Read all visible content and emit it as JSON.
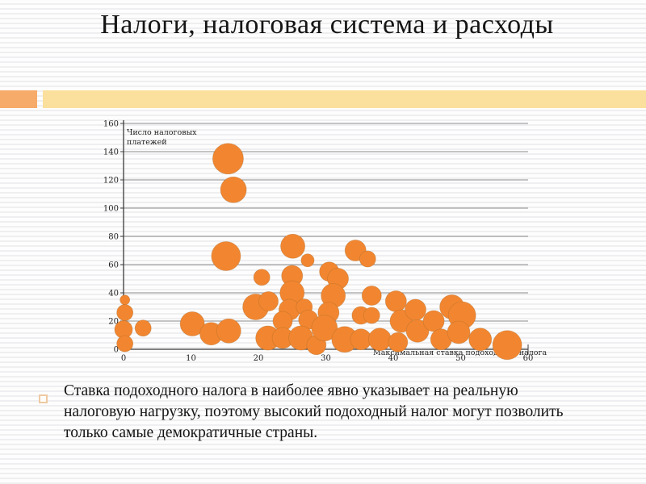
{
  "slide": {
    "title": "Налоги, налоговая система и расходы",
    "bullet_text": "Ставка подоходного налога в наиболее явно указывает на реальную налоговую нагрузку, поэтому высокий подоходный налог могут позволить только самые демократичные страны.",
    "accent_colors": {
      "orange_block": "#f6ab6b",
      "yellow_bar": "#fbdf9d",
      "bubble_fill": "#f28630",
      "bubble_stroke": "#b06a28",
      "gridline": "#8a8a8a",
      "axis": "#3a3a3a",
      "tick_text": "#222222"
    }
  },
  "chart_data": {
    "type": "scatter",
    "title": "",
    "x_axis": {
      "label": "Максимальная ставка подоходного налога",
      "ticks": [
        0,
        10,
        20,
        30,
        40,
        50,
        60
      ],
      "range": [
        0,
        60
      ],
      "grid": false
    },
    "y_axis": {
      "label_line1": "Число налоговых",
      "label_line2": "платежей",
      "ticks": [
        0,
        20,
        40,
        60,
        80,
        100,
        120,
        140,
        160
      ],
      "range": [
        0,
        160
      ],
      "grid": true
    },
    "points_note": "each point is [x=max income tax rate, y=number of tax payments, bubble radius px]",
    "points": [
      [
        15.5,
        135,
        19
      ],
      [
        16.3,
        113,
        16
      ],
      [
        15.2,
        66,
        18
      ],
      [
        20.5,
        51,
        10
      ],
      [
        25.1,
        73,
        15
      ],
      [
        27.3,
        63,
        8
      ],
      [
        34.4,
        70,
        13
      ],
      [
        36.2,
        64,
        10
      ],
      [
        0.2,
        35,
        6
      ],
      [
        0.2,
        26,
        10
      ],
      [
        0,
        14,
        11
      ],
      [
        2.9,
        15,
        10
      ],
      [
        0.2,
        4,
        10
      ],
      [
        10.2,
        18,
        15
      ],
      [
        13,
        11,
        14
      ],
      [
        15.6,
        13,
        15
      ],
      [
        19.6,
        30,
        16
      ],
      [
        21.4,
        8,
        15
      ],
      [
        21.5,
        34,
        12
      ],
      [
        25,
        52,
        13
      ],
      [
        25,
        40,
        15
      ],
      [
        24.6,
        28,
        13
      ],
      [
        23.6,
        20,
        12
      ],
      [
        23.6,
        8,
        13
      ],
      [
        26.8,
        30,
        10
      ],
      [
        27.4,
        21,
        12
      ],
      [
        26.3,
        8,
        15
      ],
      [
        28.6,
        3,
        12
      ],
      [
        30.5,
        55,
        12
      ],
      [
        31.8,
        50,
        13
      ],
      [
        31.1,
        38,
        15
      ],
      [
        30.4,
        26,
        13
      ],
      [
        29.8,
        15,
        16
      ],
      [
        32.8,
        7,
        16
      ],
      [
        35.2,
        24,
        11
      ],
      [
        35.2,
        7,
        13
      ],
      [
        36.8,
        38,
        12
      ],
      [
        36.8,
        24,
        10
      ],
      [
        38,
        7,
        14
      ],
      [
        40.4,
        34,
        13
      ],
      [
        41.2,
        20,
        14
      ],
      [
        40.7,
        5,
        12
      ],
      [
        43.3,
        28,
        13
      ],
      [
        43.6,
        13,
        14
      ],
      [
        46,
        20,
        13
      ],
      [
        47.1,
        7,
        13
      ],
      [
        48.7,
        30,
        15
      ],
      [
        50.2,
        24,
        17
      ],
      [
        49.7,
        12,
        14
      ],
      [
        52.9,
        7,
        14
      ],
      [
        56.9,
        3,
        18
      ]
    ]
  }
}
